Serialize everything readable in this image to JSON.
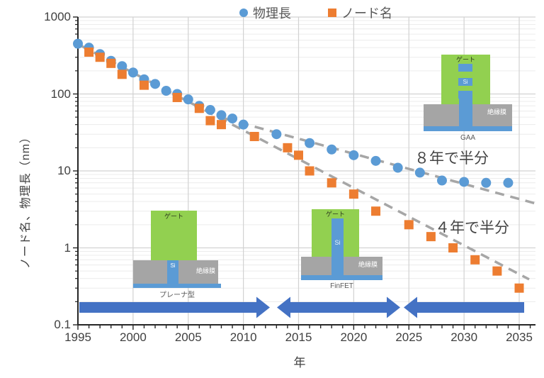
{
  "chart_data": {
    "type": "scatter",
    "title": "",
    "xlabel": "年",
    "ylabel": "ノード名、物理長（nm）",
    "x_scale": "linear",
    "y_scale": "log",
    "xlim": [
      1995,
      2036.5
    ],
    "ylim": [
      0.1,
      1000
    ],
    "x_ticks": [
      1995,
      2000,
      2005,
      2010,
      2015,
      2020,
      2025,
      2030,
      2035
    ],
    "y_ticks": [
      "1000",
      "100",
      "10",
      "1",
      "0.1"
    ],
    "grid": "on",
    "legend_position": "top-center",
    "series": [
      {
        "name": "物理長",
        "marker": "circle",
        "color": "#5B9BD5",
        "points": [
          [
            1995,
            450
          ],
          [
            1996,
            400
          ],
          [
            1997,
            330
          ],
          [
            1998,
            270
          ],
          [
            1999,
            230
          ],
          [
            2000,
            190
          ],
          [
            2001,
            155
          ],
          [
            2002,
            135
          ],
          [
            2003,
            110
          ],
          [
            2004,
            100
          ],
          [
            2005,
            85
          ],
          [
            2006,
            70
          ],
          [
            2007,
            62
          ],
          [
            2008,
            53
          ],
          [
            2009,
            48
          ],
          [
            2010,
            40
          ],
          [
            2013,
            30
          ],
          [
            2016,
            23
          ],
          [
            2018,
            19
          ],
          [
            2020,
            16
          ],
          [
            2022,
            13.5
          ],
          [
            2024,
            11
          ],
          [
            2026,
            9.5
          ],
          [
            2028,
            7.5
          ],
          [
            2030,
            7.2
          ],
          [
            2032,
            7
          ],
          [
            2034,
            7
          ]
        ]
      },
      {
        "name": "ノード名",
        "marker": "square",
        "color": "#ED7D31",
        "points": [
          [
            1996,
            350
          ],
          [
            1997,
            300
          ],
          [
            1998,
            250
          ],
          [
            1999,
            180
          ],
          [
            2001,
            130
          ],
          [
            2004,
            90
          ],
          [
            2006,
            65
          ],
          [
            2007,
            45
          ],
          [
            2008,
            40
          ],
          [
            2011,
            28
          ],
          [
            2014,
            20
          ],
          [
            2015,
            16
          ],
          [
            2016,
            10
          ],
          [
            2018,
            7
          ],
          [
            2020,
            5
          ],
          [
            2022,
            3
          ],
          [
            2025,
            2
          ],
          [
            2027,
            1.4
          ],
          [
            2029,
            1
          ],
          [
            2031,
            0.7
          ],
          [
            2033,
            0.5
          ],
          [
            2035,
            0.3
          ]
        ]
      }
    ],
    "trend_lines": [
      {
        "name": "4年で半分",
        "style": "dashed",
        "color": "#A6A6A6",
        "from": [
          1995.2,
          430
        ],
        "to": [
          2035.9,
          0.39
        ]
      },
      {
        "name": "8年で半分",
        "style": "dashed",
        "color": "#A6A6A6",
        "from": [
          2008.3,
          48
        ],
        "to": [
          2036.4,
          3.8
        ]
      }
    ],
    "annotations": [
      {
        "text": "８年で半分",
        "meaning": "halves every 8 years",
        "applies_to": "物理長"
      },
      {
        "text": "４年で半分",
        "meaning": "halves every 4 years",
        "applies_to": "ノード名"
      }
    ]
  },
  "legend": {
    "items": [
      {
        "label": "物理長",
        "marker": "circle-icon",
        "color": "#5B9BD5"
      },
      {
        "label": "ノード名",
        "marker": "square-icon",
        "color": "#ED7D31"
      }
    ]
  },
  "diagrams": [
    {
      "id": "planar",
      "caption": "プレーナ型",
      "gate_label": "ゲート",
      "channel_label": "Si",
      "insulator_label": "絶縁膜"
    },
    {
      "id": "finfet",
      "caption": "FinFET",
      "gate_label": "ゲート",
      "channel_label": "Si",
      "insulator_label": "絶縁膜"
    },
    {
      "id": "gaa",
      "caption": "GAA",
      "gate_label": "ゲート",
      "channel_label": "Si",
      "insulator_label": "絶縁膜"
    }
  ],
  "era_arrows": [
    {
      "id": "planar-era",
      "direction": "right",
      "era": "プレーナ型"
    },
    {
      "id": "finfet-era",
      "direction": "both",
      "era": "FinFET"
    },
    {
      "id": "gaa-era",
      "direction": "left",
      "era": "GAA"
    }
  ],
  "colors": {
    "series_blue": "#5B9BD5",
    "series_orange": "#ED7D31",
    "trend_gray": "#A6A6A6",
    "arrow_blue": "#4472C4",
    "gate_green": "#92D050",
    "insulator_gray": "#A5A5A5",
    "axis_black": "#262626",
    "grid_major": "#D2D2D2",
    "grid_minor": "#ECECEC",
    "text_dark": "#404040"
  }
}
